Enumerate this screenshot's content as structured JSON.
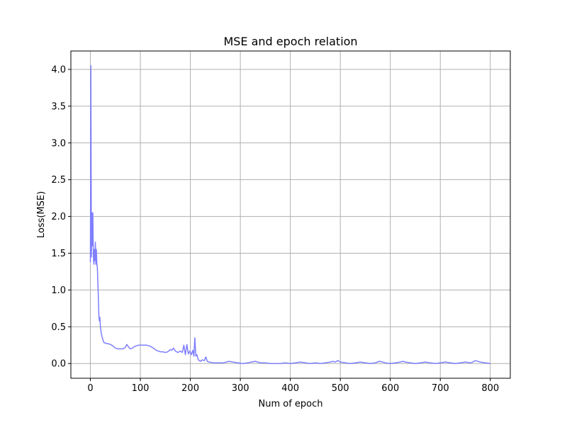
{
  "chart_data": {
    "type": "line",
    "title": "MSE and epoch relation",
    "xlabel": "Num of epoch",
    "ylabel": "Loss(MSE)",
    "xlim": [
      -39,
      840
    ],
    "ylim": [
      -0.2,
      4.25
    ],
    "xticks": [
      0,
      100,
      200,
      300,
      400,
      500,
      600,
      700,
      800
    ],
    "yticks": [
      0.0,
      0.5,
      1.0,
      1.5,
      2.0,
      2.5,
      3.0,
      3.5,
      4.0
    ],
    "xtick_labels": [
      "0",
      "100",
      "200",
      "300",
      "400",
      "500",
      "600",
      "700",
      "800"
    ],
    "ytick_labels": [
      "0.0",
      "0.5",
      "1.0",
      "1.5",
      "2.0",
      "2.5",
      "3.0",
      "3.5",
      "4.0"
    ],
    "grid": true,
    "series": [
      {
        "color": "#7f7fff",
        "x": [
          0,
          1,
          2,
          3,
          4,
          5,
          6,
          7,
          8,
          9,
          10,
          11,
          12,
          13,
          14,
          15,
          16,
          17,
          18,
          19,
          20,
          22,
          24,
          26,
          28,
          30,
          33,
          36,
          40,
          45,
          50,
          55,
          60,
          65,
          70,
          73,
          76,
          78,
          80,
          84,
          88,
          92,
          96,
          100,
          106,
          112,
          118,
          124,
          128,
          132,
          136,
          140,
          145,
          150,
          155,
          160,
          163,
          166,
          170,
          175,
          180,
          184,
          187,
          190,
          193,
          196,
          199,
          202,
          205,
          207,
          209,
          211,
          213,
          216,
          220,
          224,
          228,
          231,
          234,
          238,
          245,
          255,
          265,
          272,
          278,
          285,
          295,
          305,
          315,
          322,
          330,
          340,
          350,
          360,
          370,
          380,
          390,
          400,
          410,
          420,
          430,
          440,
          450,
          460,
          470,
          480,
          485,
          490,
          495,
          500,
          510,
          520,
          530,
          540,
          550,
          560,
          570,
          578,
          585,
          590,
          600,
          610,
          620,
          625,
          630,
          640,
          650,
          660,
          670,
          680,
          690,
          700,
          710,
          720,
          730,
          740,
          750,
          760,
          765,
          770,
          780,
          790,
          800
        ],
        "y": [
          1.38,
          4.05,
          1.45,
          2.05,
          1.6,
          2.05,
          1.45,
          1.35,
          1.55,
          1.4,
          1.65,
          1.35,
          1.55,
          1.35,
          1.3,
          1.1,
          0.9,
          0.65,
          0.58,
          0.63,
          0.5,
          0.4,
          0.35,
          0.3,
          0.28,
          0.28,
          0.27,
          0.27,
          0.26,
          0.24,
          0.21,
          0.2,
          0.2,
          0.2,
          0.22,
          0.26,
          0.23,
          0.21,
          0.2,
          0.21,
          0.23,
          0.24,
          0.25,
          0.25,
          0.25,
          0.25,
          0.24,
          0.22,
          0.2,
          0.18,
          0.17,
          0.16,
          0.16,
          0.15,
          0.16,
          0.19,
          0.18,
          0.21,
          0.17,
          0.15,
          0.17,
          0.15,
          0.25,
          0.12,
          0.26,
          0.13,
          0.17,
          0.12,
          0.18,
          0.1,
          0.35,
          0.1,
          0.12,
          0.05,
          0.03,
          0.05,
          0.04,
          0.09,
          0.03,
          0.02,
          0.01,
          0.01,
          0.01,
          0.02,
          0.03,
          0.02,
          0.01,
          0.0,
          0.01,
          0.02,
          0.03,
          0.01,
          0.01,
          0.0,
          0.0,
          0.0,
          0.01,
          0.0,
          0.01,
          0.02,
          0.01,
          0.0,
          0.01,
          0.0,
          0.01,
          0.02,
          0.03,
          0.02,
          0.04,
          0.02,
          0.01,
          0.0,
          0.01,
          0.02,
          0.01,
          0.0,
          0.01,
          0.03,
          0.02,
          0.01,
          0.0,
          0.01,
          0.02,
          0.03,
          0.02,
          0.01,
          0.0,
          0.01,
          0.02,
          0.01,
          0.0,
          0.01,
          0.02,
          0.01,
          0.0,
          0.01,
          0.02,
          0.01,
          0.02,
          0.04,
          0.02,
          0.01,
          0.0
        ]
      }
    ]
  }
}
